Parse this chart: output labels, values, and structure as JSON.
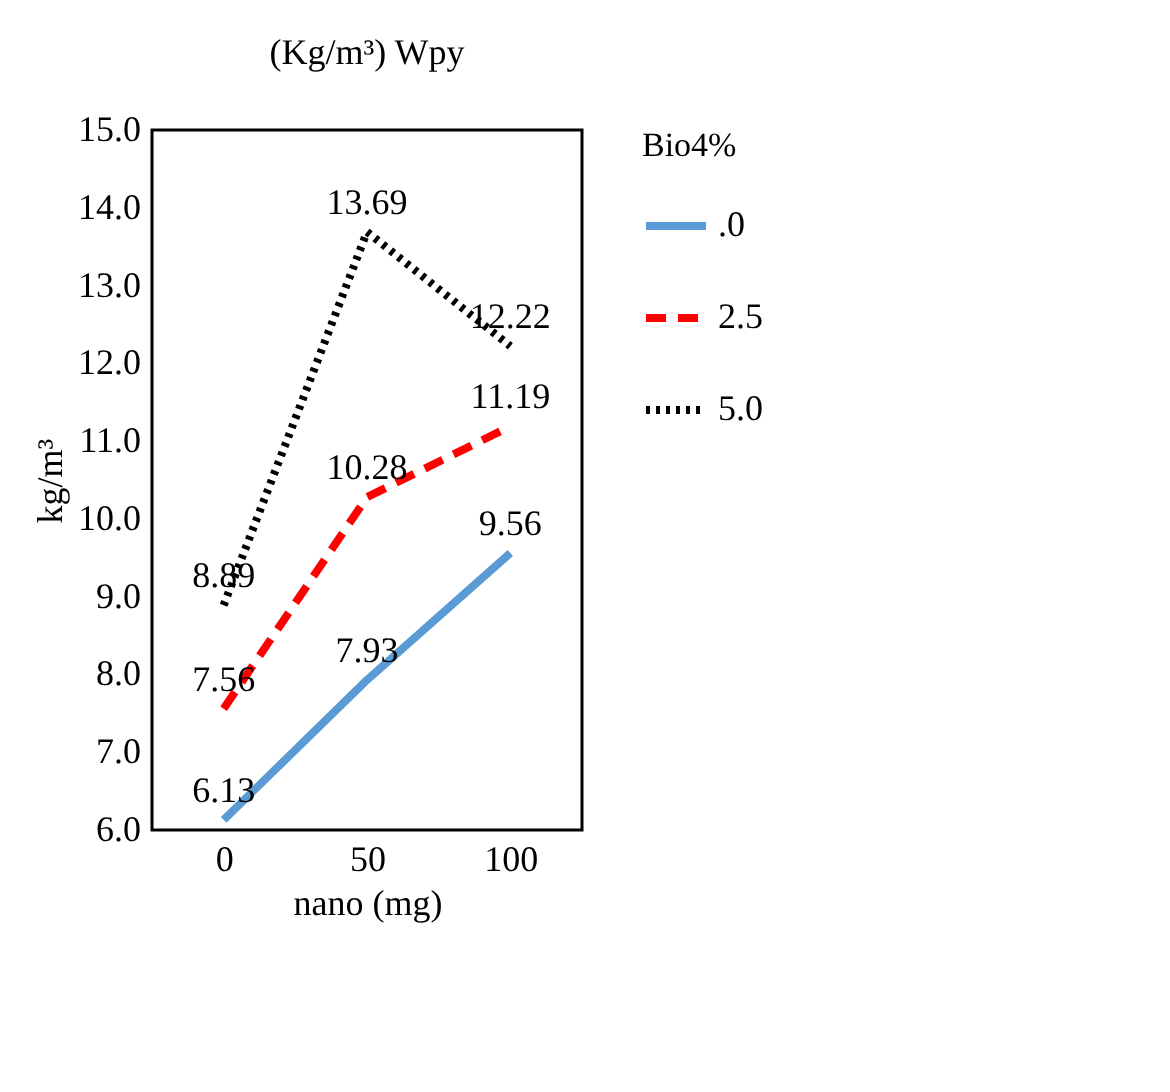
{
  "chart_data": {
    "type": "line",
    "title": "(Kg/m³) Wpy",
    "xlabel": "nano (mg)",
    "ylabel": "kg/m³",
    "legend_title": "Bio4%",
    "categories": [
      "0",
      "50",
      "100"
    ],
    "series": [
      {
        "name": ".0",
        "color": "#5b9bd5",
        "line_style": "solid",
        "values": [
          6.13,
          7.93,
          9.56
        ]
      },
      {
        "name": "2.5",
        "color": "#ff0000",
        "line_style": "dashed",
        "values": [
          7.56,
          10.28,
          11.19
        ]
      },
      {
        "name": "5.0",
        "color": "#000000",
        "line_style": "dotted",
        "values": [
          8.89,
          13.69,
          12.22
        ]
      }
    ],
    "ylim": [
      6,
      15
    ],
    "yticks": [
      {
        "value": 6,
        "label": "6.0"
      },
      {
        "value": 7,
        "label": "7.0"
      },
      {
        "value": 8,
        "label": "8.0"
      },
      {
        "value": 9,
        "label": "9.0"
      },
      {
        "value": 10,
        "label": "10.0"
      },
      {
        "value": 11,
        "label": "11.0"
      },
      {
        "value": 12,
        "label": "12.0"
      },
      {
        "value": 13,
        "label": "13.0"
      },
      {
        "value": 14,
        "label": "14.0"
      },
      {
        "value": 15,
        "label": "15.0"
      }
    ],
    "grid": false,
    "legend": "right",
    "data_labels": true,
    "marker": "none"
  }
}
